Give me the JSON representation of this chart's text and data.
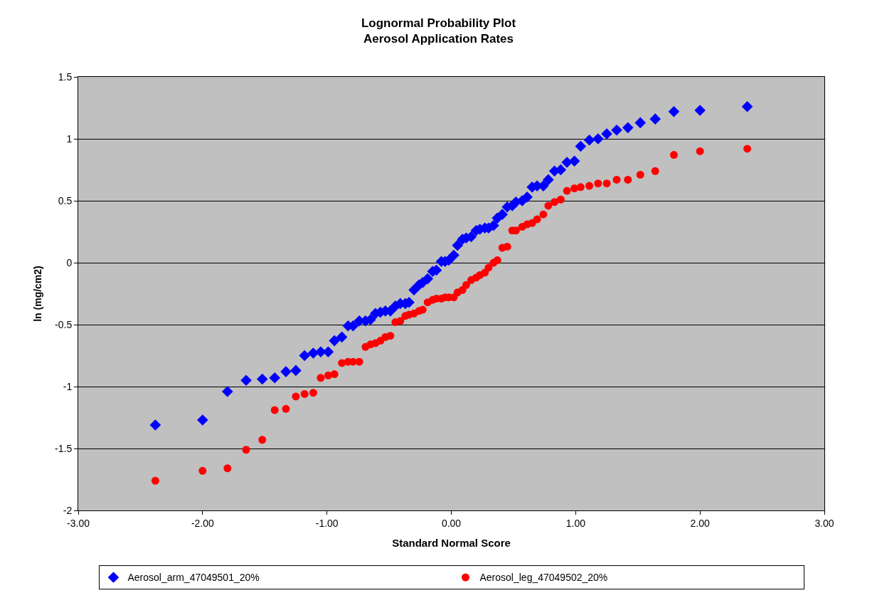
{
  "chart_data": {
    "type": "scatter",
    "title": "Lognormal Probability Plot\nAerosol Application Rates",
    "xlabel": "Standard Normal Score",
    "ylabel": "ln (mg/cm2)",
    "x": [
      -2.38,
      -2.0,
      -1.8,
      -1.65,
      -1.52,
      -1.42,
      -1.33,
      -1.25,
      -1.18,
      -1.11,
      -1.05,
      -0.99,
      -0.94,
      -0.88,
      -0.83,
      -0.79,
      -0.74,
      -0.69,
      -0.65,
      -0.61,
      -0.57,
      -0.53,
      -0.49,
      -0.45,
      -0.41,
      -0.37,
      -0.34,
      -0.3,
      -0.26,
      -0.23,
      -0.19,
      -0.15,
      -0.12,
      -0.08,
      -0.05,
      -0.02,
      0.02,
      0.05,
      0.09,
      0.12,
      0.16,
      0.2,
      0.23,
      0.27,
      0.3,
      0.34,
      0.37,
      0.41,
      0.45,
      0.49,
      0.52,
      0.57,
      0.61,
      0.65,
      0.69,
      0.74,
      0.78,
      0.83,
      0.88,
      0.93,
      0.99,
      1.04,
      1.11,
      1.18,
      1.25,
      1.33,
      1.42,
      1.52,
      1.64,
      1.79,
      2.0,
      2.38
    ],
    "series": [
      {
        "name": "Aerosol_arm_47049501_20%",
        "color": "#0000ff",
        "marker": "diamond",
        "values": [
          -1.31,
          -1.27,
          -1.04,
          -0.95,
          -0.94,
          -0.93,
          -0.88,
          -0.87,
          -0.75,
          -0.73,
          -0.72,
          -0.72,
          -0.63,
          -0.6,
          -0.51,
          -0.51,
          -0.47,
          -0.47,
          -0.46,
          -0.41,
          -0.4,
          -0.39,
          -0.39,
          -0.35,
          -0.33,
          -0.33,
          -0.32,
          -0.22,
          -0.18,
          -0.16,
          -0.13,
          -0.07,
          -0.06,
          0.01,
          0.01,
          0.02,
          0.06,
          0.14,
          0.19,
          0.2,
          0.21,
          0.26,
          0.27,
          0.28,
          0.28,
          0.3,
          0.36,
          0.39,
          0.45,
          0.46,
          0.49,
          0.5,
          0.53,
          0.61,
          0.62,
          0.62,
          0.67,
          0.74,
          0.75,
          0.81,
          0.82,
          0.94,
          0.99,
          1.0,
          1.04,
          1.07,
          1.09,
          1.13,
          1.16,
          1.22,
          1.23,
          1.26
        ]
      },
      {
        "name": "Aerosol_leg_47049502_20%",
        "color": "#ff0000",
        "marker": "circle",
        "values": [
          -1.76,
          -1.68,
          -1.66,
          -1.51,
          -1.43,
          -1.19,
          -1.18,
          -1.08,
          -1.06,
          -1.05,
          -0.93,
          -0.91,
          -0.9,
          -0.81,
          -0.8,
          -0.8,
          -0.8,
          -0.68,
          -0.66,
          -0.65,
          -0.63,
          -0.6,
          -0.59,
          -0.48,
          -0.47,
          -0.43,
          -0.42,
          -0.41,
          -0.39,
          -0.38,
          -0.32,
          -0.3,
          -0.29,
          -0.29,
          -0.28,
          -0.28,
          -0.28,
          -0.24,
          -0.22,
          -0.18,
          -0.14,
          -0.12,
          -0.1,
          -0.08,
          -0.04,
          0.0,
          0.02,
          0.12,
          0.13,
          0.26,
          0.26,
          0.29,
          0.31,
          0.32,
          0.35,
          0.39,
          0.46,
          0.49,
          0.51,
          0.58,
          0.6,
          0.61,
          0.62,
          0.64,
          0.64,
          0.67,
          0.67,
          0.71,
          0.74,
          0.87,
          0.9,
          0.92
        ]
      }
    ],
    "xlim": [
      -3,
      3
    ],
    "xticks": [
      {
        "value": -3,
        "label": "-3.00"
      },
      {
        "value": -2,
        "label": "-2.00"
      },
      {
        "value": -1,
        "label": "-1.00"
      },
      {
        "value": 0,
        "label": "0.00"
      },
      {
        "value": 1,
        "label": "1.00"
      },
      {
        "value": 2,
        "label": "2.00"
      },
      {
        "value": 3,
        "label": "3.00"
      }
    ],
    "ylim": [
      -2,
      1.5
    ],
    "yticks": [
      -2,
      -1.5,
      -1,
      -0.5,
      0,
      0.5,
      1,
      1.5
    ],
    "grid": "y",
    "legend": "bottom"
  }
}
